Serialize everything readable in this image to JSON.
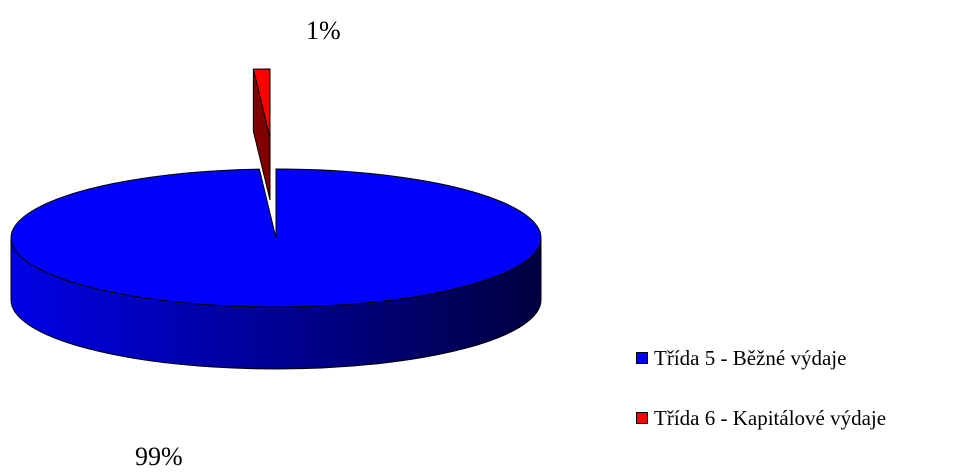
{
  "chart_data": {
    "type": "pie",
    "style": "3d-exploded",
    "slices": [
      {
        "name": "Třída 5 - Běžné výdaje",
        "value": 99,
        "label": "99%",
        "color": "#0000ff"
      },
      {
        "name": "Třída 6 - Kapitálové výdaje",
        "value": 1,
        "label": "1%",
        "color": "#ff0000"
      }
    ],
    "legend_position": "right-bottom"
  }
}
